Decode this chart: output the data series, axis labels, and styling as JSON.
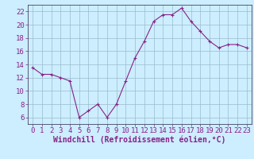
{
  "x": [
    0,
    1,
    2,
    3,
    4,
    5,
    6,
    7,
    8,
    9,
    10,
    11,
    12,
    13,
    14,
    15,
    16,
    17,
    18,
    19,
    20,
    21,
    22,
    23
  ],
  "y": [
    13.5,
    12.5,
    12.5,
    12.0,
    11.5,
    6.0,
    7.0,
    8.0,
    6.0,
    8.0,
    11.5,
    15.0,
    17.5,
    20.5,
    21.5,
    21.5,
    22.5,
    20.5,
    19.0,
    17.5,
    16.5,
    17.0,
    17.0,
    16.5
  ],
  "line_color": "#882288",
  "marker": "+",
  "marker_size": 3,
  "bg_color": "#cceeff",
  "grid_color": "#99bbcc",
  "xlabel": "Windchill (Refroidissement éolien,°C)",
  "xlabel_fontsize": 7,
  "tick_label_fontsize": 6.5,
  "ylim": [
    5.0,
    23.0
  ],
  "yticks": [
    6,
    8,
    10,
    12,
    14,
    16,
    18,
    20,
    22
  ],
  "xticks": [
    0,
    1,
    2,
    3,
    4,
    5,
    6,
    7,
    8,
    9,
    10,
    11,
    12,
    13,
    14,
    15,
    16,
    17,
    18,
    19,
    20,
    21,
    22,
    23
  ],
  "spine_color": "#444466"
}
